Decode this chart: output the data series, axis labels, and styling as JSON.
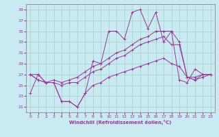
{
  "xlabel": "Windchill (Refroidissement éolien,°C)",
  "xlim": [
    -0.5,
    23.5
  ],
  "ylim": [
    20,
    40
  ],
  "yticks": [
    21,
    23,
    25,
    27,
    29,
    31,
    33,
    35,
    37,
    39
  ],
  "xticks": [
    0,
    1,
    2,
    3,
    4,
    5,
    6,
    7,
    8,
    9,
    10,
    11,
    12,
    13,
    14,
    15,
    16,
    17,
    18,
    19,
    20,
    21,
    22,
    23
  ],
  "background_color": "#c8eaf0",
  "grid_color": "#b0d8e0",
  "line_color": "#993399",
  "line1_x": [
    0,
    1,
    2,
    3,
    4,
    5,
    6,
    7,
    8,
    9,
    10,
    11,
    12,
    13,
    14,
    15,
    16,
    17,
    18,
    19,
    20,
    21,
    22,
    23
  ],
  "line1_y": [
    27.0,
    27.0,
    25.5,
    25.5,
    22.0,
    22.0,
    21.0,
    23.5,
    29.5,
    29.0,
    35.0,
    35.0,
    33.5,
    38.5,
    39.0,
    35.5,
    38.5,
    33.0,
    35.0,
    26.0,
    25.5,
    28.0,
    27.0,
    27.0
  ],
  "line2_x": [
    0,
    1,
    2,
    3,
    4,
    5,
    6,
    7,
    8,
    9,
    10,
    11,
    12,
    13,
    14,
    15,
    16,
    17,
    18,
    19,
    20,
    21,
    22,
    23
  ],
  "line2_y": [
    27.0,
    26.0,
    25.5,
    26.0,
    25.5,
    26.0,
    26.5,
    27.5,
    28.5,
    29.0,
    30.0,
    31.0,
    31.5,
    32.5,
    33.5,
    34.0,
    35.0,
    35.0,
    35.0,
    33.0,
    26.5,
    26.5,
    27.0,
    27.0
  ],
  "line3_x": [
    0,
    1,
    2,
    3,
    4,
    5,
    6,
    7,
    8,
    9,
    10,
    11,
    12,
    13,
    14,
    15,
    16,
    17,
    18,
    19,
    20,
    21,
    22,
    23
  ],
  "line3_y": [
    27.0,
    26.0,
    25.5,
    25.5,
    25.0,
    25.5,
    25.5,
    26.5,
    27.5,
    28.0,
    29.0,
    30.0,
    30.5,
    31.5,
    32.5,
    33.0,
    33.5,
    34.0,
    32.5,
    32.5,
    26.5,
    26.0,
    26.5,
    27.0
  ],
  "line4_x": [
    0,
    1,
    2,
    3,
    4,
    5,
    6,
    7,
    8,
    9,
    10,
    11,
    12,
    13,
    14,
    15,
    16,
    17,
    18,
    19,
    20,
    21,
    22,
    23
  ],
  "line4_y": [
    23.5,
    27.0,
    25.5,
    25.5,
    22.0,
    22.0,
    21.0,
    23.5,
    25.0,
    25.5,
    26.5,
    27.0,
    27.5,
    28.0,
    28.5,
    29.0,
    29.5,
    30.0,
    29.0,
    28.5,
    26.5,
    26.0,
    27.0,
    27.0
  ]
}
